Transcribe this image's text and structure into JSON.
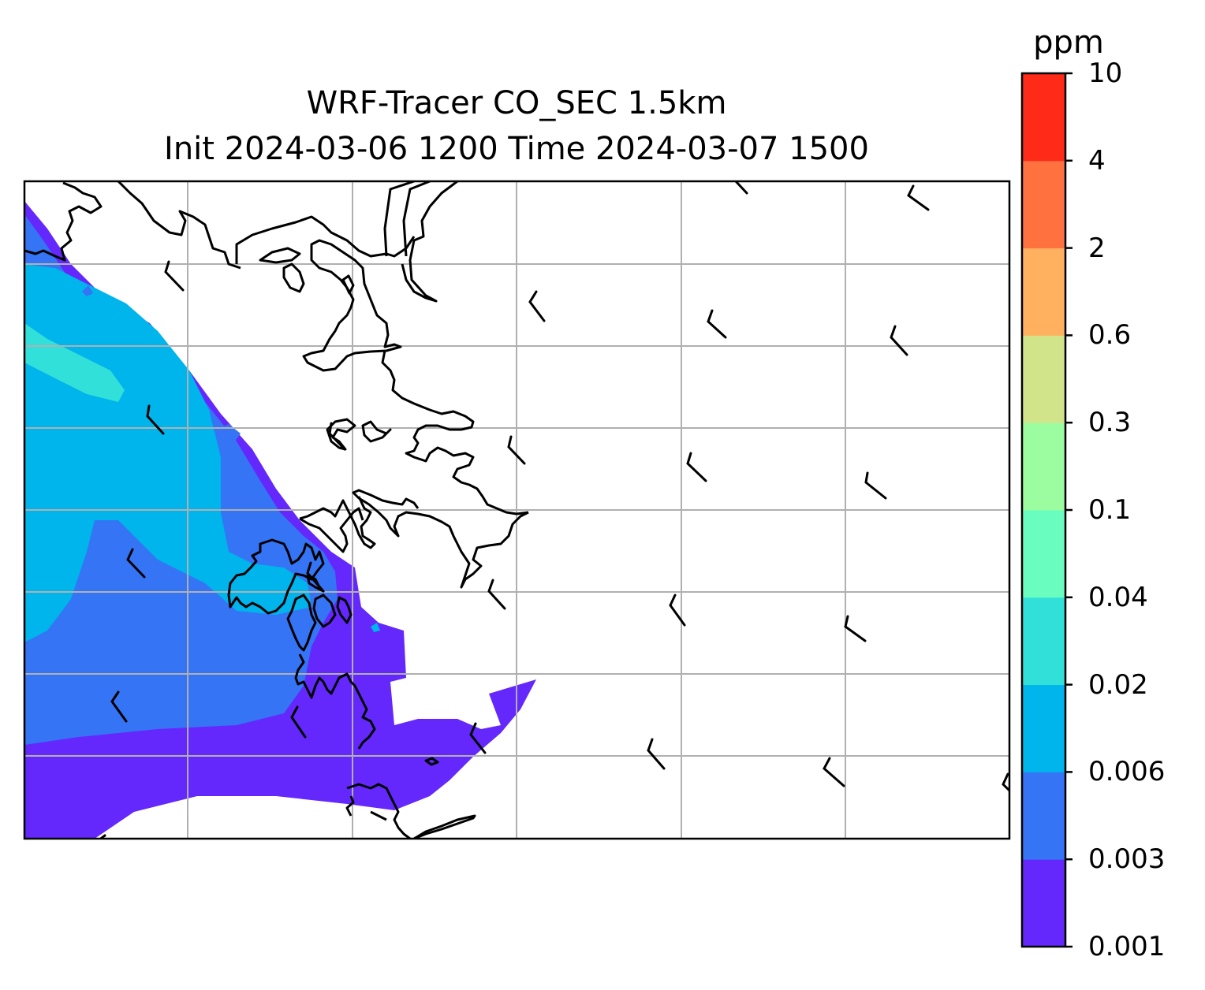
{
  "title": {
    "line1": "WRF-Tracer CO_SEC 1.5km",
    "line2": "Init 2024-03-06 1200 Time 2024-03-07 1500"
  },
  "colorbar": {
    "unit": "ppm",
    "levels": [
      "0.001",
      "0.003",
      "0.006",
      "0.02",
      "0.04",
      "0.1",
      "0.3",
      "0.6",
      "2",
      "4",
      "10"
    ],
    "colors": [
      "#6428fc",
      "#3474f5",
      "#00b4ec",
      "#31e0d8",
      "#6afdc0",
      "#9cfca0",
      "#d2e48a",
      "#ffb160",
      "#ff7240",
      "#ff2a17"
    ]
  },
  "map": {
    "gridlines": true,
    "coastline_color": "#000000",
    "gridline_color": "#b0b0b0",
    "wind_barbs_shown": true
  }
}
